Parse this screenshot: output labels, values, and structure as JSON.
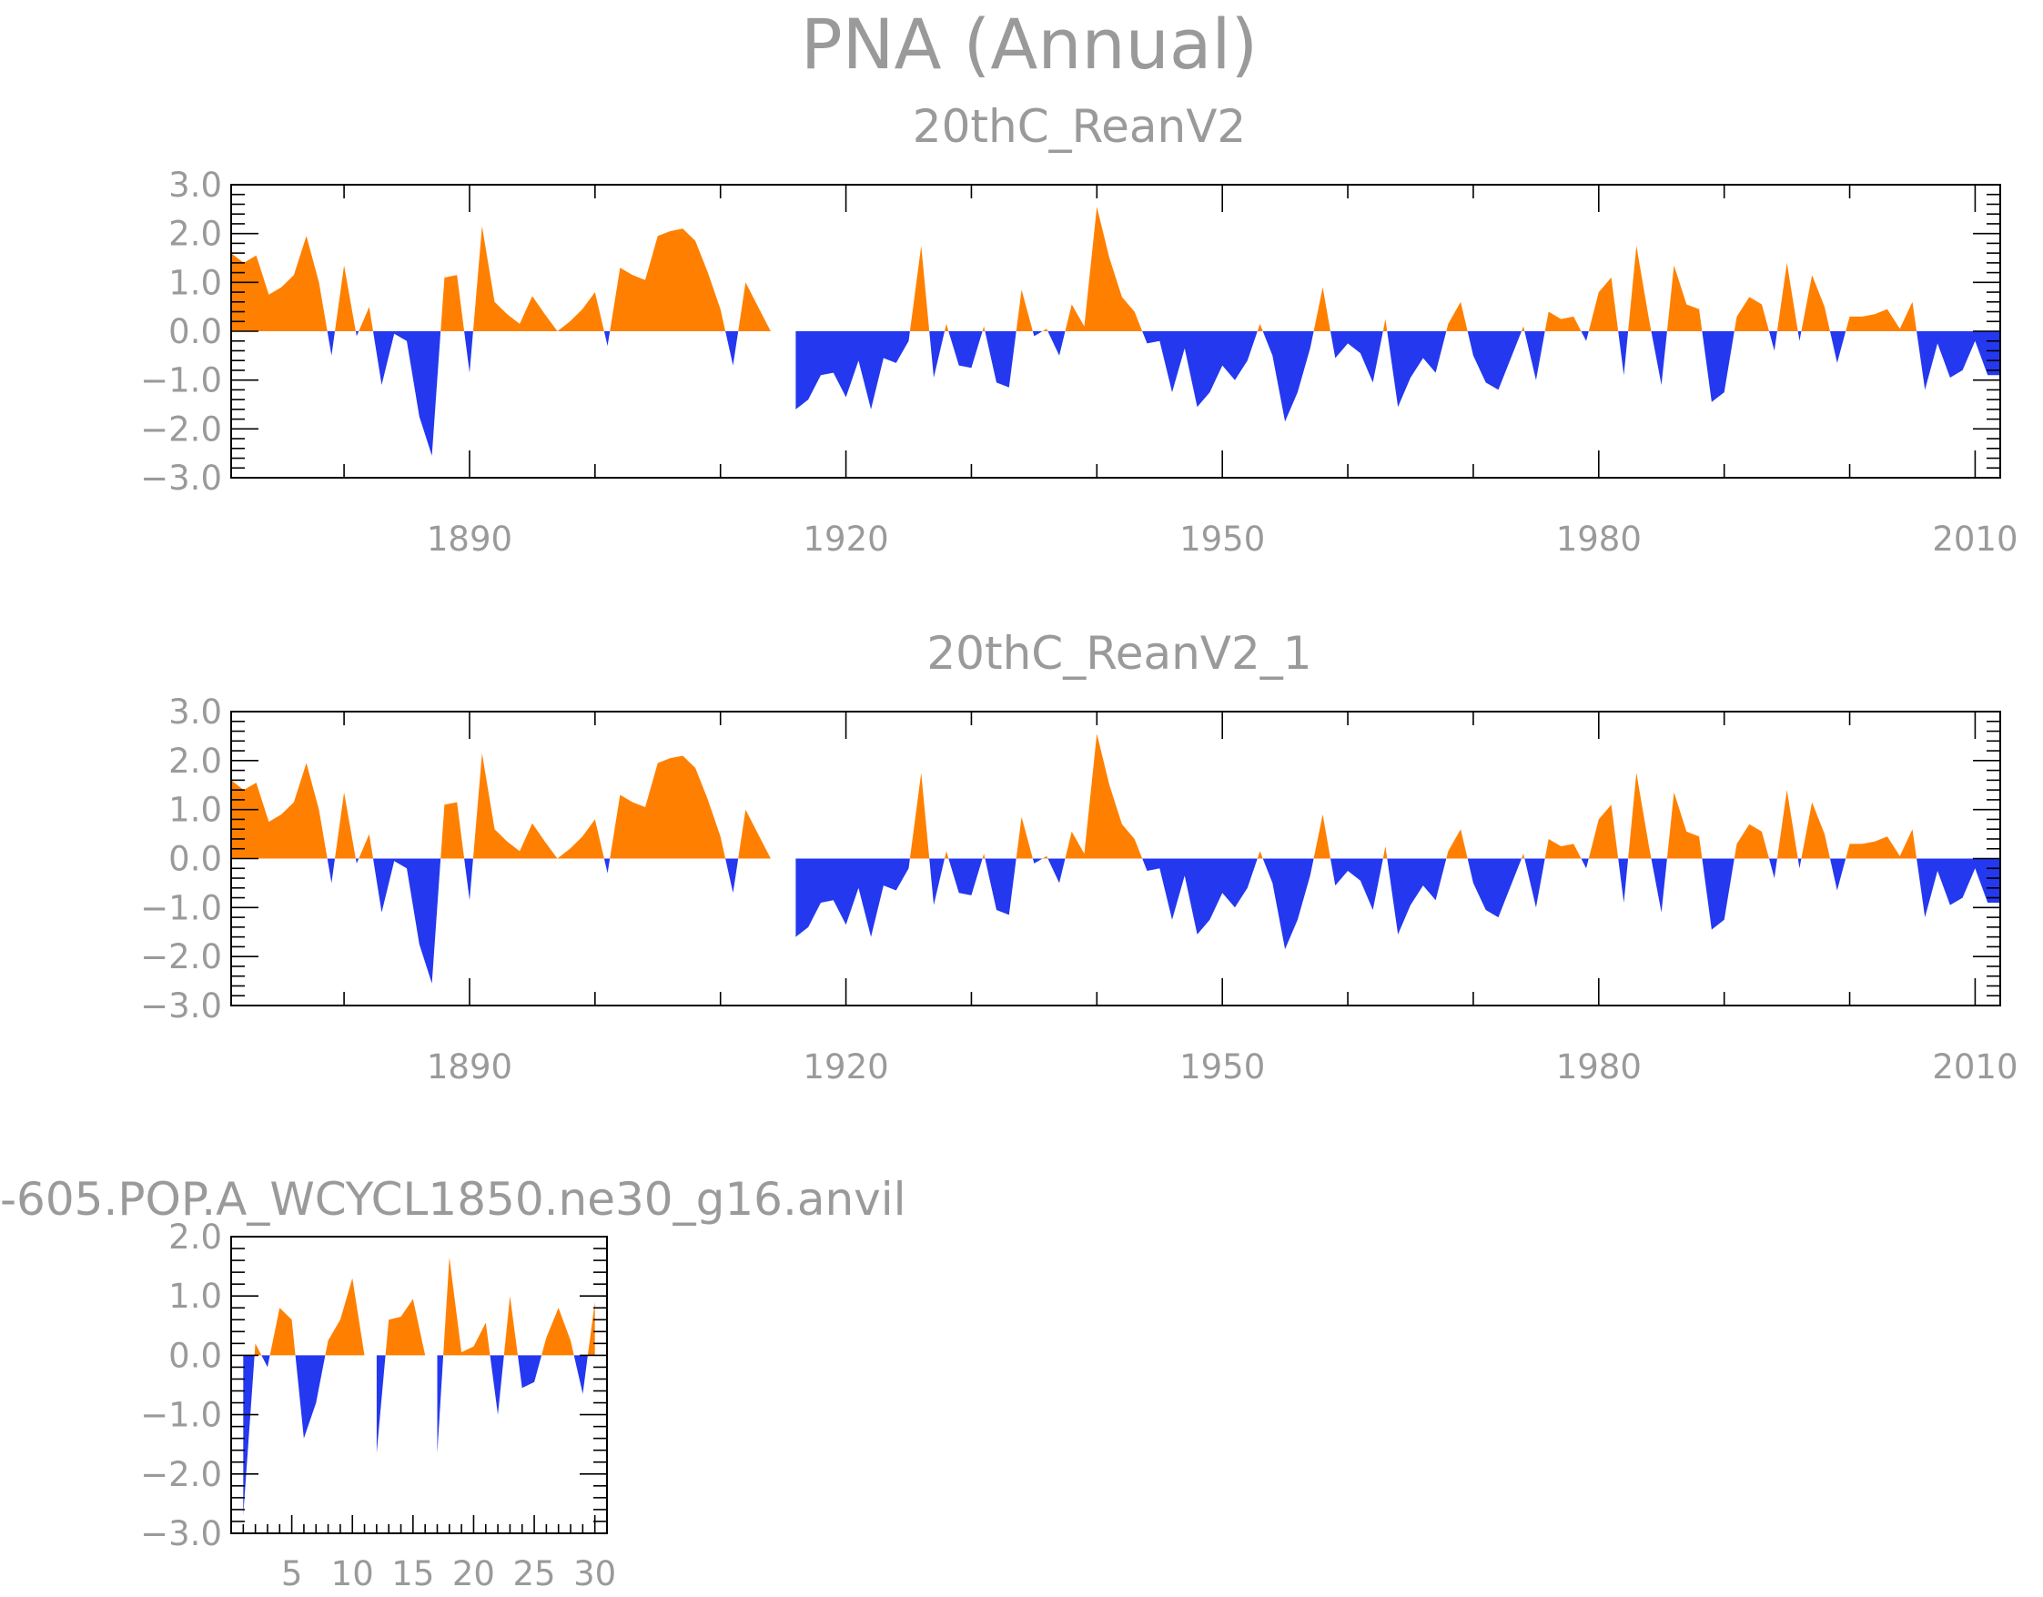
{
  "title": "PNA (Annual)",
  "colors": {
    "positive": "#ff8000",
    "negative": "#2438f0",
    "text": "#9a9a9a",
    "axis": "#000000"
  },
  "chart_data": [
    {
      "type": "area",
      "title": "20thC_ReanV2",
      "xlabel": "",
      "ylabel": "",
      "xlim": [
        1871,
        2012
      ],
      "ylim": [
        -3.0,
        3.0
      ],
      "xticks": [
        1890,
        1920,
        1950,
        1980,
        2010
      ],
      "xtick_labels": [
        "1890",
        "1920",
        "1950",
        "1980",
        "2010"
      ],
      "yticks": [
        -3.0,
        -2.0,
        -1.0,
        0.0,
        1.0,
        2.0,
        3.0
      ],
      "ytick_labels": [
        "-3.0",
        "-2.0",
        "-1.0",
        "0.0",
        "1.0",
        "2.0",
        "3.0"
      ],
      "x_start": 1871,
      "values": [
        1.6,
        1.4,
        1.55,
        0.75,
        0.9,
        1.15,
        1.95,
        1.0,
        -0.5,
        1.35,
        -0.1,
        0.5,
        -1.1,
        -0.05,
        -0.2,
        -1.75,
        -2.55,
        1.1,
        1.15,
        -0.85,
        2.15,
        0.6,
        0.35,
        0.15,
        0.72,
        0.35,
        0.0,
        0.2,
        0.45,
        0.8,
        -0.3,
        1.3,
        1.15,
        1.05,
        1.95,
        2.05,
        2.1,
        1.85,
        1.2,
        0.45,
        -0.7,
        1.0,
        0.5,
        0.0,
        0.0,
        -1.6,
        -1.4,
        -0.9,
        -0.85,
        -1.35,
        -0.6,
        -1.6,
        -0.55,
        -0.65,
        -0.2,
        1.75,
        -0.95,
        0.15,
        -0.7,
        -0.75,
        0.1,
        -1.05,
        -1.15,
        0.85,
        -0.1,
        0.05,
        -0.5,
        0.55,
        0.1,
        2.55,
        1.5,
        0.7,
        0.4,
        -0.25,
        -0.2,
        -1.25,
        -0.35,
        -1.55,
        -1.25,
        -0.7,
        -1.0,
        -0.6,
        0.15,
        -0.5,
        -1.85,
        -1.25,
        -0.35,
        0.9,
        -0.55,
        -0.25,
        -0.45,
        -1.05,
        0.25,
        -1.55,
        -0.95,
        -0.55,
        -0.85,
        0.15,
        0.6,
        -0.5,
        -1.05,
        -1.2,
        -0.55,
        0.1,
        -1.0,
        0.4,
        0.25,
        0.3,
        -0.2,
        0.8,
        1.1,
        -0.9,
        1.75,
        0.25,
        -1.1,
        1.35,
        0.55,
        0.45,
        -1.45,
        -1.25,
        0.3,
        0.7,
        0.55,
        -0.4,
        1.4,
        -0.2,
        1.15,
        0.5,
        -0.65,
        0.3,
        0.3,
        0.35,
        0.45,
        0.05,
        0.6,
        -1.2,
        -0.25,
        -0.95,
        -0.8,
        -0.2,
        -0.9,
        -0.9
      ]
    },
    {
      "type": "area",
      "title": "20thC_ReanV2_1",
      "xlabel": "",
      "ylabel": "",
      "xlim": [
        1871,
        2012
      ],
      "ylim": [
        -3.0,
        3.0
      ],
      "xticks": [
        1890,
        1920,
        1950,
        1980,
        2010
      ],
      "xtick_labels": [
        "1890",
        "1920",
        "1950",
        "1980",
        "2010"
      ],
      "yticks": [
        -3.0,
        -2.0,
        -1.0,
        0.0,
        1.0,
        2.0,
        3.0
      ],
      "ytick_labels": [
        "-3.0",
        "-2.0",
        "-1.0",
        "0.0",
        "1.0",
        "2.0",
        "3.0"
      ],
      "x_start": 1871,
      "values": [
        1.6,
        1.4,
        1.55,
        0.75,
        0.9,
        1.15,
        1.95,
        1.0,
        -0.5,
        1.35,
        -0.1,
        0.5,
        -1.1,
        -0.05,
        -0.2,
        -1.75,
        -2.55,
        1.1,
        1.15,
        -0.85,
        2.15,
        0.6,
        0.35,
        0.15,
        0.72,
        0.35,
        0.0,
        0.2,
        0.45,
        0.8,
        -0.3,
        1.3,
        1.15,
        1.05,
        1.95,
        2.05,
        2.1,
        1.85,
        1.2,
        0.45,
        -0.7,
        1.0,
        0.5,
        0.0,
        0.0,
        -1.6,
        -1.4,
        -0.9,
        -0.85,
        -1.35,
        -0.6,
        -1.6,
        -0.55,
        -0.65,
        -0.2,
        1.75,
        -0.95,
        0.15,
        -0.7,
        -0.75,
        0.1,
        -1.05,
        -1.15,
        0.85,
        -0.1,
        0.05,
        -0.5,
        0.55,
        0.1,
        2.55,
        1.5,
        0.7,
        0.4,
        -0.25,
        -0.2,
        -1.25,
        -0.35,
        -1.55,
        -1.25,
        -0.7,
        -1.0,
        -0.6,
        0.15,
        -0.5,
        -1.85,
        -1.25,
        -0.35,
        0.9,
        -0.55,
        -0.25,
        -0.45,
        -1.05,
        0.25,
        -1.55,
        -0.95,
        -0.55,
        -0.85,
        0.15,
        0.6,
        -0.5,
        -1.05,
        -1.2,
        -0.55,
        0.1,
        -1.0,
        0.4,
        0.25,
        0.3,
        -0.2,
        0.8,
        1.1,
        -0.9,
        1.75,
        0.25,
        -1.1,
        1.35,
        0.55,
        0.45,
        -1.45,
        -1.25,
        0.3,
        0.7,
        0.55,
        -0.4,
        1.4,
        -0.2,
        1.15,
        0.5,
        -0.65,
        0.3,
        0.3,
        0.35,
        0.45,
        0.05,
        0.6,
        -1.2,
        -0.25,
        -0.95,
        -0.8,
        -0.2,
        -0.9,
        -0.9
      ]
    },
    {
      "type": "area",
      "title": "-605.POP.A_WCYCL1850.ne30_g16.anvil",
      "xlabel": "",
      "ylabel": "",
      "xlim": [
        0,
        31
      ],
      "ylim": [
        -3.0,
        2.0
      ],
      "xticks": [
        5,
        10,
        15,
        20,
        25,
        30
      ],
      "xtick_labels": [
        "5",
        "10",
        "15",
        "20",
        "25",
        "30"
      ],
      "yticks": [
        -3.0,
        -2.0,
        -1.0,
        0.0,
        1.0,
        2.0
      ],
      "ytick_labels": [
        "-3.0",
        "-2.0",
        "-1.0",
        "0.0",
        "1.0",
        "2.0"
      ],
      "x_start": 1,
      "values": [
        -2.7,
        0.2,
        -0.2,
        0.8,
        0.6,
        -1.4,
        -0.8,
        0.25,
        0.6,
        1.3,
        0.0,
        -1.65,
        0.6,
        0.65,
        0.95,
        0.0,
        -1.65,
        1.65,
        0.05,
        0.15,
        0.55,
        -1.0,
        1.0,
        -0.55,
        -0.45,
        0.3,
        0.8,
        0.25,
        -0.65,
        0.9
      ]
    }
  ]
}
